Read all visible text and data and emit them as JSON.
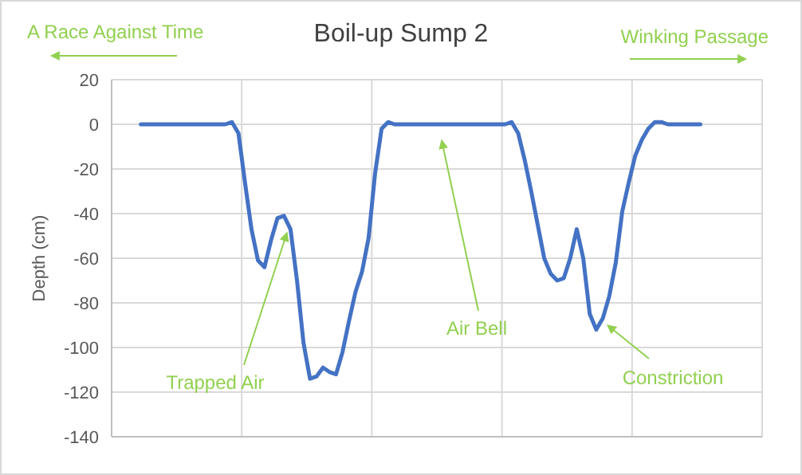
{
  "chart_data": {
    "type": "line",
    "title": "Boil-up Sump 2",
    "ylabel": "Depth (cm)",
    "categories": [
      null,
      null,
      null,
      null,
      null,
      null,
      null,
      null,
      null,
      null,
      null,
      null,
      null,
      null,
      null,
      null,
      null,
      null,
      null,
      null,
      null,
      null,
      null,
      null,
      null,
      null,
      null,
      null,
      null,
      null,
      null,
      null,
      null,
      null,
      null,
      null,
      null,
      null,
      null,
      null,
      null,
      null,
      null,
      null,
      null,
      null,
      null,
      null,
      null,
      null,
      null,
      null,
      null,
      null,
      null,
      null,
      null,
      null,
      null,
      null,
      null,
      null,
      null,
      null,
      null,
      null,
      null,
      null,
      null,
      null,
      null,
      null,
      null,
      null,
      null,
      null,
      null,
      null,
      null,
      null,
      null,
      null,
      null,
      null,
      null,
      null,
      null,
      null,
      null,
      null,
      null,
      null,
      null,
      null,
      null,
      null,
      null,
      null,
      null,
      null
    ],
    "ylim": [
      -140,
      20
    ],
    "yticks": [
      -140,
      -120,
      -100,
      -80,
      -60,
      -40,
      -20,
      0,
      20
    ],
    "grid": true,
    "marker": "none",
    "line_style": "solid",
    "series": [
      {
        "color": "#4472c4",
        "values": [
          null,
          null,
          null,
          null,
          0,
          0,
          0,
          0,
          0,
          0,
          0,
          0,
          0,
          0,
          0,
          0,
          0,
          0,
          1,
          -4,
          -26,
          -47,
          -61,
          -64,
          -52,
          -42,
          -41,
          -47,
          -70,
          -98,
          -114,
          -113,
          -109,
          -111,
          -112,
          -102,
          -88,
          -75,
          -66,
          -51,
          -22,
          -2,
          1,
          0,
          0,
          0,
          0,
          0,
          0,
          0,
          0,
          0,
          0,
          0,
          0,
          0,
          0,
          0,
          0,
          0,
          0,
          1,
          -4,
          -16,
          -30,
          -45,
          -60,
          -67,
          -70,
          -69,
          -60,
          -47,
          -60,
          -85,
          -92,
          -87,
          -77,
          -62,
          -39,
          -26,
          -14,
          -7,
          -2,
          1,
          1,
          0,
          0,
          0,
          0,
          0,
          0,
          null,
          null,
          null,
          null,
          null,
          null,
          null,
          null,
          null
        ]
      }
    ],
    "annotations": [
      "Trapped Air",
      "Air Bell",
      "Constriction",
      "A Race Against Time",
      "Winking Passage"
    ]
  }
}
